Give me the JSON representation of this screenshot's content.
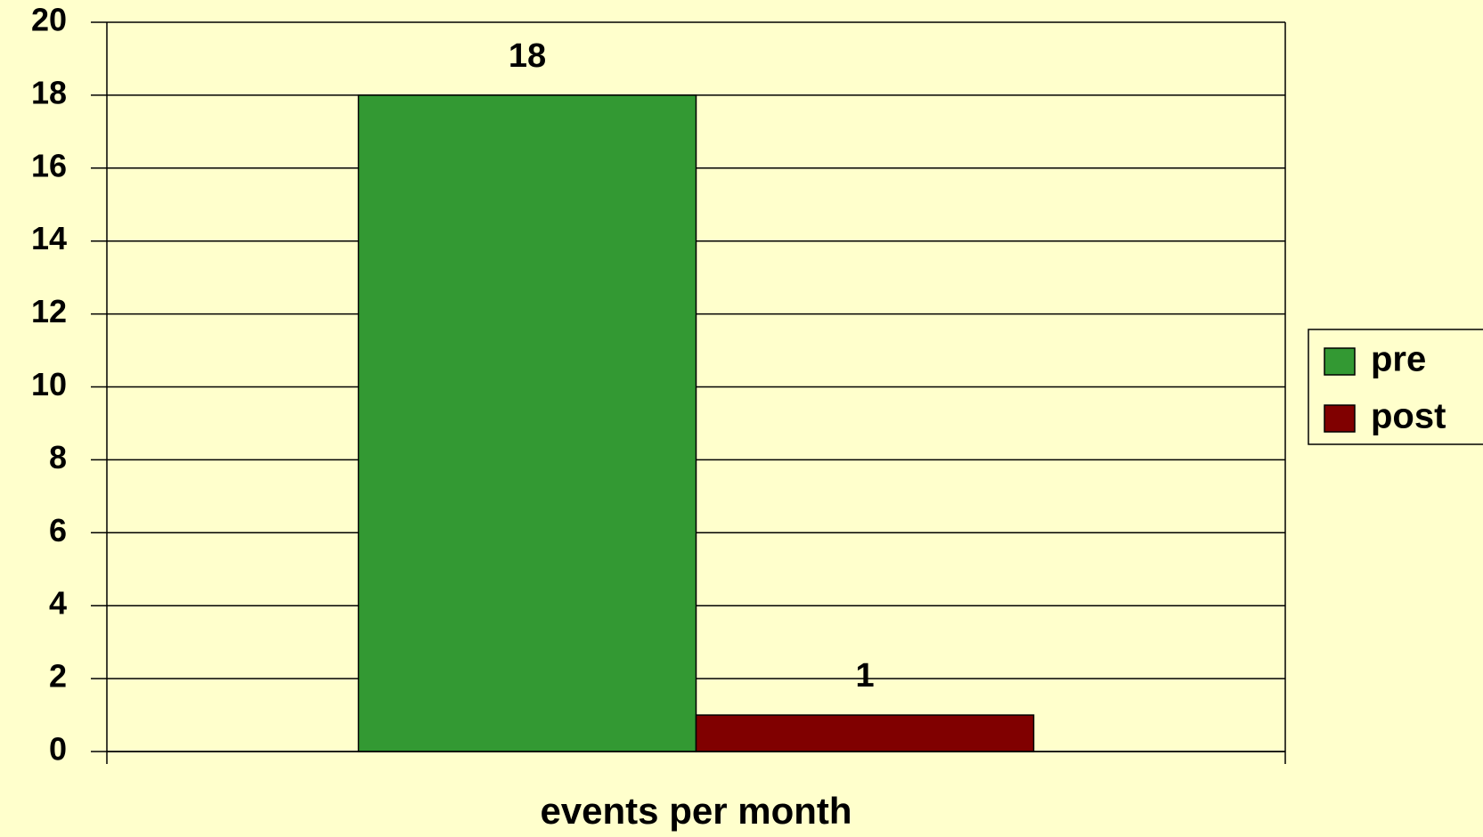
{
  "chart_data": {
    "type": "bar",
    "categories": [
      "events per month"
    ],
    "series": [
      {
        "name": "pre",
        "color": "#339933",
        "values": [
          18
        ]
      },
      {
        "name": "post",
        "color": "#800000",
        "values": [
          1
        ]
      }
    ],
    "ylim": [
      0,
      20
    ],
    "yticks": [
      0,
      2,
      4,
      6,
      8,
      10,
      12,
      14,
      16,
      18,
      20
    ],
    "grid": true,
    "legend": "right"
  }
}
